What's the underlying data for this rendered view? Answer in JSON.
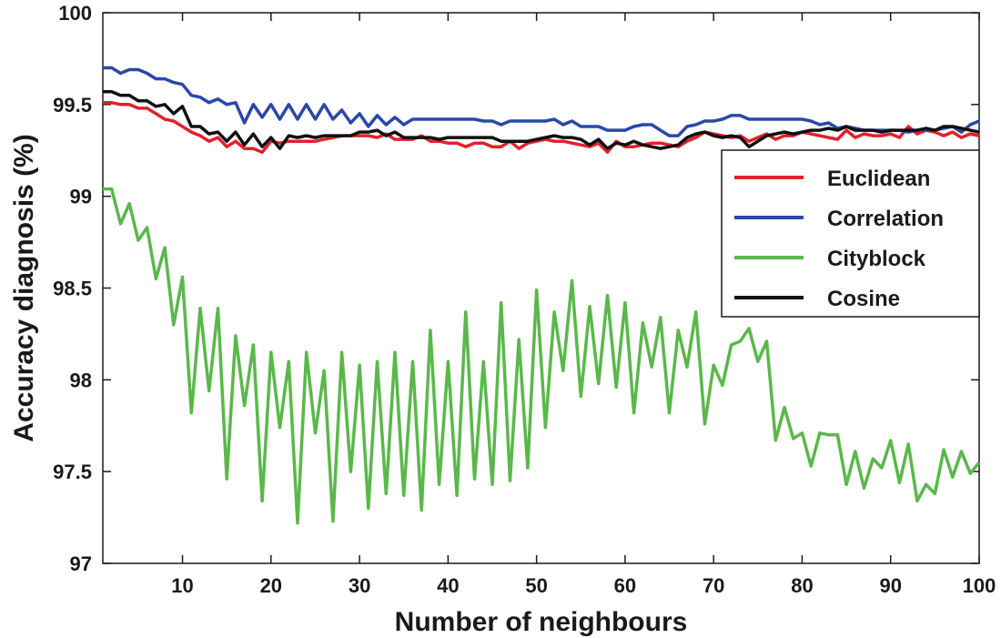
{
  "chart_data": {
    "type": "line",
    "title": "",
    "xlabel": "Number of neighbours",
    "ylabel": "Accuracy diagnosis (%)",
    "xlim": [
      1,
      100
    ],
    "ylim": [
      97,
      100
    ],
    "xticks": [
      10,
      20,
      30,
      40,
      50,
      60,
      70,
      80,
      90,
      100
    ],
    "xtick_labels": [
      "10",
      "20",
      "30",
      "40",
      "50",
      "60",
      "70",
      "80",
      "90",
      "100"
    ],
    "yticks": [
      97,
      97.5,
      98,
      98.5,
      99,
      99.5,
      100
    ],
    "ytick_labels": [
      "97",
      "97.5",
      "98",
      "98.5",
      "99",
      "99.5",
      "100"
    ],
    "grid": false,
    "legend_position": "upper-right",
    "series": [
      {
        "name": "Euclidean",
        "color": "#e0222b",
        "x": [
          1,
          2,
          3,
          4,
          5,
          6,
          7,
          8,
          9,
          10,
          11,
          12,
          13,
          14,
          15,
          16,
          17,
          18,
          19,
          20,
          21,
          22,
          23,
          24,
          25,
          26,
          27,
          28,
          29,
          30,
          31,
          32,
          33,
          34,
          35,
          36,
          37,
          38,
          39,
          40,
          41,
          42,
          43,
          44,
          45,
          46,
          47,
          48,
          49,
          50,
          51,
          52,
          53,
          54,
          55,
          56,
          57,
          58,
          59,
          60,
          61,
          62,
          63,
          64,
          65,
          66,
          67,
          68,
          69,
          70,
          71,
          72,
          73,
          74,
          75,
          76,
          77,
          78,
          79,
          80,
          81,
          82,
          83,
          84,
          85,
          86,
          87,
          88,
          89,
          90,
          91,
          92,
          93,
          94,
          95,
          96,
          97,
          98,
          99,
          100
        ],
        "values": [
          99.51,
          99.51,
          99.5,
          99.5,
          99.48,
          99.48,
          99.45,
          99.42,
          99.41,
          99.38,
          99.35,
          99.33,
          99.3,
          99.32,
          99.27,
          99.3,
          99.26,
          99.26,
          99.24,
          99.3,
          99.29,
          99.3,
          99.3,
          99.3,
          99.3,
          99.31,
          99.32,
          99.33,
          99.33,
          99.33,
          99.33,
          99.32,
          99.34,
          99.31,
          99.31,
          99.31,
          99.33,
          99.3,
          99.3,
          99.29,
          99.29,
          99.27,
          99.29,
          99.29,
          99.27,
          99.27,
          99.3,
          99.26,
          99.29,
          99.3,
          99.31,
          99.3,
          99.3,
          99.29,
          99.28,
          99.27,
          99.29,
          99.24,
          99.3,
          99.27,
          99.27,
          99.28,
          99.29,
          99.29,
          99.28,
          99.27,
          99.3,
          99.32,
          99.35,
          99.34,
          99.33,
          99.32,
          99.33,
          99.3,
          99.32,
          99.34,
          99.31,
          99.33,
          99.33,
          99.35,
          99.34,
          99.33,
          99.32,
          99.31,
          99.36,
          99.32,
          99.34,
          99.33,
          99.33,
          99.34,
          99.32,
          99.38,
          99.34,
          99.36,
          99.35,
          99.33,
          99.35,
          99.32,
          99.34,
          99.33
        ]
      },
      {
        "name": "Correlation",
        "color": "#2b48a8",
        "x": [
          1,
          2,
          3,
          4,
          5,
          6,
          7,
          8,
          9,
          10,
          11,
          12,
          13,
          14,
          15,
          16,
          17,
          18,
          19,
          20,
          21,
          22,
          23,
          24,
          25,
          26,
          27,
          28,
          29,
          30,
          31,
          32,
          33,
          34,
          35,
          36,
          37,
          38,
          39,
          40,
          41,
          42,
          43,
          44,
          45,
          46,
          47,
          48,
          49,
          50,
          51,
          52,
          53,
          54,
          55,
          56,
          57,
          58,
          59,
          60,
          61,
          62,
          63,
          64,
          65,
          66,
          67,
          68,
          69,
          70,
          71,
          72,
          73,
          74,
          75,
          76,
          77,
          78,
          79,
          80,
          81,
          82,
          83,
          84,
          85,
          86,
          87,
          88,
          89,
          90,
          91,
          92,
          93,
          94,
          95,
          96,
          97,
          98,
          99,
          100
        ],
        "values": [
          99.7,
          99.7,
          99.67,
          99.69,
          99.69,
          99.67,
          99.64,
          99.64,
          99.62,
          99.61,
          99.55,
          99.54,
          99.51,
          99.53,
          99.5,
          99.51,
          99.4,
          99.5,
          99.43,
          99.5,
          99.42,
          99.5,
          99.42,
          99.5,
          99.42,
          99.5,
          99.42,
          99.47,
          99.4,
          99.45,
          99.38,
          99.44,
          99.39,
          99.43,
          99.39,
          99.42,
          99.42,
          99.42,
          99.42,
          99.42,
          99.42,
          99.42,
          99.42,
          99.41,
          99.41,
          99.39,
          99.41,
          99.41,
          99.41,
          99.41,
          99.41,
          99.42,
          99.39,
          99.41,
          99.38,
          99.38,
          99.38,
          99.36,
          99.36,
          99.36,
          99.38,
          99.39,
          99.39,
          99.36,
          99.33,
          99.33,
          99.38,
          99.39,
          99.41,
          99.41,
          99.42,
          99.44,
          99.44,
          99.42,
          99.42,
          99.42,
          99.42,
          99.42,
          99.42,
          99.42,
          99.41,
          99.39,
          99.4,
          99.37,
          99.38,
          99.37,
          99.36,
          99.36,
          99.36,
          99.36,
          99.36,
          99.35,
          99.36,
          99.36,
          99.36,
          99.37,
          99.38,
          99.35,
          99.39,
          99.41
        ]
      },
      {
        "name": "Cityblock",
        "color": "#5ab84a",
        "x": [
          1,
          2,
          3,
          4,
          5,
          6,
          7,
          8,
          9,
          10,
          11,
          12,
          13,
          14,
          15,
          16,
          17,
          18,
          19,
          20,
          21,
          22,
          23,
          24,
          25,
          26,
          27,
          28,
          29,
          30,
          31,
          32,
          33,
          34,
          35,
          36,
          37,
          38,
          39,
          40,
          41,
          42,
          43,
          44,
          45,
          46,
          47,
          48,
          49,
          50,
          51,
          52,
          53,
          54,
          55,
          56,
          57,
          58,
          59,
          60,
          61,
          62,
          63,
          64,
          65,
          66,
          67,
          68,
          69,
          70,
          71,
          72,
          73,
          74,
          75,
          76,
          77,
          78,
          79,
          80,
          81,
          82,
          83,
          84,
          85,
          86,
          87,
          88,
          89,
          90,
          91,
          92,
          93,
          94,
          95,
          96,
          97,
          98,
          99,
          100
        ],
        "values": [
          99.04,
          99.04,
          98.85,
          98.96,
          98.76,
          98.83,
          98.55,
          98.72,
          98.3,
          98.56,
          97.82,
          98.39,
          97.94,
          98.39,
          97.46,
          98.24,
          97.86,
          98.19,
          97.34,
          98.15,
          97.74,
          98.1,
          97.22,
          98.15,
          97.71,
          98.05,
          97.23,
          98.15,
          97.5,
          98.08,
          97.3,
          98.1,
          97.38,
          98.15,
          97.37,
          98.1,
          97.29,
          98.27,
          97.43,
          98.1,
          97.37,
          98.37,
          97.46,
          98.1,
          97.43,
          98.42,
          97.45,
          98.22,
          97.52,
          98.49,
          97.74,
          98.37,
          98.05,
          98.54,
          97.91,
          98.4,
          97.98,
          98.46,
          97.96,
          98.42,
          97.82,
          98.31,
          98.07,
          98.34,
          97.82,
          98.27,
          98.07,
          98.37,
          97.76,
          98.08,
          97.97,
          98.19,
          98.21,
          98.28,
          98.1,
          98.21,
          97.67,
          97.85,
          97.68,
          97.71,
          97.53,
          97.71,
          97.7,
          97.7,
          97.43,
          97.61,
          97.41,
          97.57,
          97.52,
          97.67,
          97.44,
          97.65,
          97.34,
          97.43,
          97.38,
          97.62,
          97.47,
          97.61,
          97.49,
          97.55
        ]
      },
      {
        "name": "Cosine",
        "color": "#111111",
        "x": [
          1,
          2,
          3,
          4,
          5,
          6,
          7,
          8,
          9,
          10,
          11,
          12,
          13,
          14,
          15,
          16,
          17,
          18,
          19,
          20,
          21,
          22,
          23,
          24,
          25,
          26,
          27,
          28,
          29,
          30,
          31,
          32,
          33,
          34,
          35,
          36,
          37,
          38,
          39,
          40,
          41,
          42,
          43,
          44,
          45,
          46,
          47,
          48,
          49,
          50,
          51,
          52,
          53,
          54,
          55,
          56,
          57,
          58,
          59,
          60,
          61,
          62,
          63,
          64,
          65,
          66,
          67,
          68,
          69,
          70,
          71,
          72,
          73,
          74,
          75,
          76,
          77,
          78,
          79,
          80,
          81,
          82,
          83,
          84,
          85,
          86,
          87,
          88,
          89,
          90,
          91,
          92,
          93,
          94,
          95,
          96,
          97,
          98,
          99,
          100
        ],
        "values": [
          99.57,
          99.57,
          99.55,
          99.55,
          99.52,
          99.52,
          99.49,
          99.5,
          99.45,
          99.49,
          99.38,
          99.38,
          99.34,
          99.35,
          99.3,
          99.35,
          99.28,
          99.34,
          99.27,
          99.32,
          99.26,
          99.33,
          99.32,
          99.33,
          99.32,
          99.33,
          99.33,
          99.33,
          99.33,
          99.35,
          99.35,
          99.36,
          99.33,
          99.35,
          99.32,
          99.32,
          99.32,
          99.32,
          99.31,
          99.32,
          99.32,
          99.32,
          99.32,
          99.32,
          99.32,
          99.3,
          99.3,
          99.3,
          99.3,
          99.31,
          99.32,
          99.33,
          99.32,
          99.32,
          99.31,
          99.28,
          99.31,
          99.26,
          99.29,
          99.28,
          99.3,
          99.28,
          99.27,
          99.26,
          99.27,
          99.28,
          99.32,
          99.34,
          99.35,
          99.33,
          99.32,
          99.33,
          99.32,
          99.27,
          99.3,
          99.33,
          99.34,
          99.35,
          99.34,
          99.35,
          99.36,
          99.36,
          99.37,
          99.36,
          99.38,
          99.36,
          99.36,
          99.36,
          99.35,
          99.36,
          99.36,
          99.36,
          99.36,
          99.37,
          99.36,
          99.38,
          99.38,
          99.37,
          99.36,
          99.35
        ]
      }
    ]
  }
}
